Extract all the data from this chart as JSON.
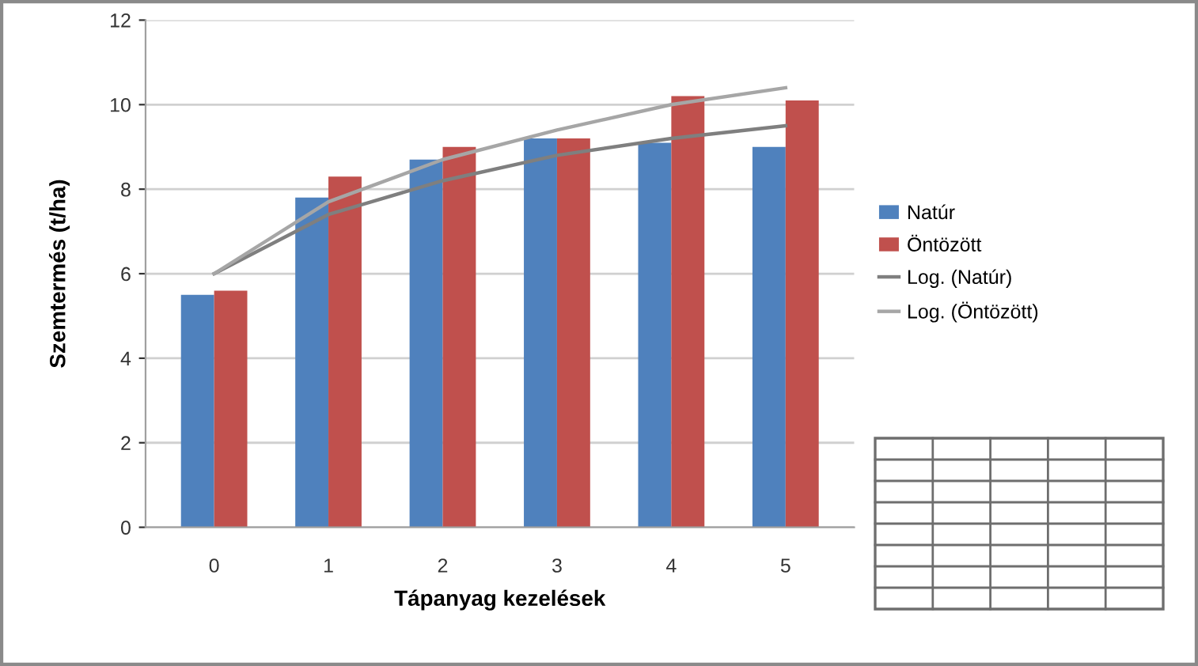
{
  "chart_data": {
    "type": "bar",
    "xlabel": "Tápanyag kezelések",
    "ylabel": "Szemtermés (t/ha)",
    "categories": [
      "0",
      "1",
      "2",
      "3",
      "4",
      "5"
    ],
    "series": [
      {
        "name": "Natúr",
        "color": "#4f81bd",
        "values": [
          5.5,
          7.8,
          8.7,
          9.2,
          9.1,
          9.0
        ]
      },
      {
        "name": "Öntözött",
        "color": "#c0504d",
        "values": [
          5.6,
          8.3,
          9.0,
          9.2,
          10.2,
          10.1
        ]
      },
      {
        "name": "Log. (Natúr)",
        "type": "line",
        "color": "#7f7f7f",
        "values": [
          6.0,
          7.4,
          8.2,
          8.8,
          9.2,
          9.5
        ]
      },
      {
        "name": "Log. (Öntözött)",
        "type": "line",
        "color": "#a6a6a6",
        "values": [
          6.0,
          7.7,
          8.7,
          9.4,
          10.0,
          10.4
        ]
      }
    ],
    "ylim": [
      0,
      12
    ],
    "yticks": [
      0,
      2,
      4,
      6,
      8,
      10,
      12
    ],
    "grid": "y",
    "legend": "right"
  }
}
